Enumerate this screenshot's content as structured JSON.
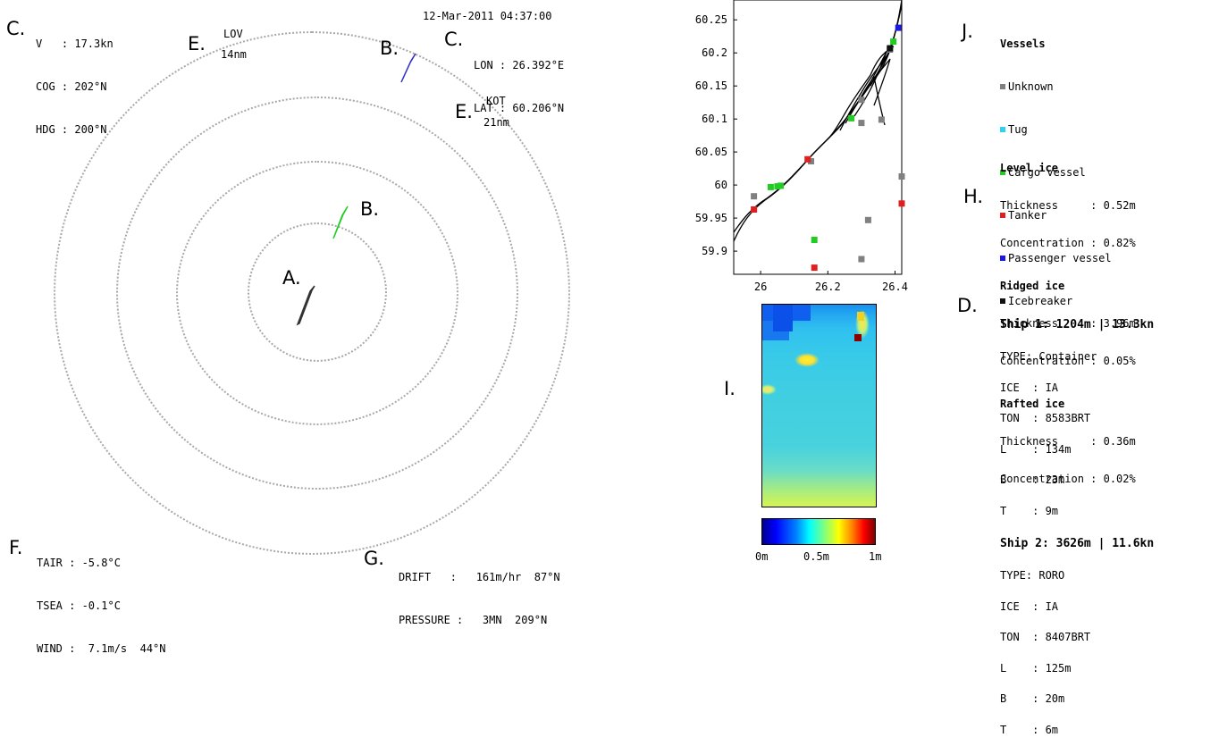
{
  "markers": {
    "c_top_left": "C.",
    "e_lov": "E.",
    "b_top": "B.",
    "c_top_right": "C.",
    "e_kot": "E.",
    "b_middle": "B.",
    "a_ship": "A.",
    "f_weather": "F.",
    "g_drift": "G.",
    "j_map": "J.",
    "i_heatmap": "I.",
    "j_legend": "J.",
    "h_ice": "H.",
    "d_ships": "D."
  },
  "own_ship": {
    "speed": "V   : 17.3kn",
    "cog": "COG : 202°N",
    "hdg": "HDG : 200°N"
  },
  "timestamp": "12-Mar-2011 04:37:00",
  "position": {
    "lon": "LON : 26.392°E",
    "lat": "LAT : 60.206°N"
  },
  "landmarks": {
    "lov_name": "LOV",
    "lov_distance": "14nm",
    "kot_name": "KOT",
    "kot_distance": "21nm"
  },
  "weather": {
    "tair": "TAIR : -5.8°C",
    "tsea": "TSEA : -0.1°C",
    "wind": "WIND :  7.1m/s  44°N"
  },
  "drift": {
    "drift": "DRIFT   :   161m/hr  87°N",
    "pressure": "PRESSURE :   3MN  209°N"
  },
  "chart_data": {
    "type": "scatter",
    "title": "",
    "xlabel": "",
    "ylabel": "",
    "xlim": [
      25.92,
      26.42
    ],
    "ylim": [
      59.865,
      60.28
    ],
    "x_ticks": [
      "26",
      "26.2",
      "26.4"
    ],
    "x_tick_values": [
      26.0,
      26.2,
      26.4
    ],
    "y_ticks": [
      "60.25",
      "60.2",
      "60.15",
      "60.1",
      "60.05",
      "60",
      "59.95",
      "59.9"
    ],
    "y_tick_values": [
      60.25,
      60.2,
      60.15,
      60.1,
      60.05,
      60.0,
      59.95,
      59.9
    ],
    "series": [
      {
        "name": "Unknown",
        "color": "#808080",
        "points": [
          [
            25.98,
            59.983
          ],
          [
            26.15,
            60.036
          ],
          [
            26.3,
            60.094
          ],
          [
            26.3,
            60.129
          ],
          [
            26.36,
            60.099
          ],
          [
            26.42,
            60.013
          ],
          [
            26.32,
            59.947
          ],
          [
            26.3,
            59.888
          ],
          [
            26.385,
            60.205
          ]
        ]
      },
      {
        "name": "Tug",
        "color": "#2ad4f0",
        "points": []
      },
      {
        "name": "Cargo vessel",
        "color": "#22cc22",
        "points": [
          [
            26.03,
            59.997
          ],
          [
            26.05,
            59.998
          ],
          [
            26.06,
            59.999
          ],
          [
            26.16,
            59.917
          ],
          [
            26.27,
            60.101
          ],
          [
            26.395,
            60.217
          ]
        ]
      },
      {
        "name": "Tanker",
        "color": "#e02020",
        "points": [
          [
            25.98,
            59.963
          ],
          [
            26.14,
            60.039
          ],
          [
            26.16,
            59.875
          ],
          [
            26.42,
            59.972
          ]
        ]
      },
      {
        "name": "Passenger vessel",
        "color": "#1a1ae0",
        "points": [
          [
            26.41,
            60.238
          ]
        ]
      },
      {
        "name": "Icebreaker",
        "color": "#111111",
        "points": [
          [
            26.385,
            60.207
          ]
        ]
      }
    ]
  },
  "legend": {
    "title": "Vessels",
    "items": [
      {
        "label": "Unknown",
        "color": "#808080"
      },
      {
        "label": "Tug",
        "color": "#2ad4f0"
      },
      {
        "label": "Cargo vessel",
        "color": "#22cc22"
      },
      {
        "label": "Tanker",
        "color": "#e02020"
      },
      {
        "label": "Passenger vessel",
        "color": "#1a1ae0"
      },
      {
        "label": "Icebreaker",
        "color": "#111111"
      }
    ]
  },
  "ice": {
    "level_title": "Level ice",
    "level_thickness": "Thickness     : 0.52m",
    "level_concentration": "Concentration : 0.82%",
    "ridged_title": "Ridged ice",
    "ridged_thickness": "Thickness     : 3.96m",
    "ridged_concentration": "Concentration : 0.05%",
    "rafted_title": "Rafted ice",
    "rafted_thickness": "Thickness     : 0.36m",
    "rafted_concentration": "Concentration : 0.02%"
  },
  "ships": [
    {
      "header": "Ship 1: 1204m | 13.3kn",
      "lines": [
        "TYPE: Container",
        "ICE  : IA",
        "TON  : 8583BRT",
        "L    : 134m",
        "B    : 23m",
        "T    : 9m"
      ]
    },
    {
      "header": "Ship 2: 3626m | 11.6kn",
      "lines": [
        "TYPE: RORO",
        "ICE  : IA",
        "TON  : 8407BRT",
        "L    : 125m",
        "B    : 20m",
        "T    : 6m"
      ]
    }
  ],
  "colorbar": {
    "min_label": "0m",
    "mid_label": "0.5m",
    "max_label": "1m"
  },
  "colors": {
    "ring": "#a8a8a8",
    "own_ship": "#333333",
    "vessel_top": "#3030c8",
    "vessel_mid": "#22cc22"
  }
}
